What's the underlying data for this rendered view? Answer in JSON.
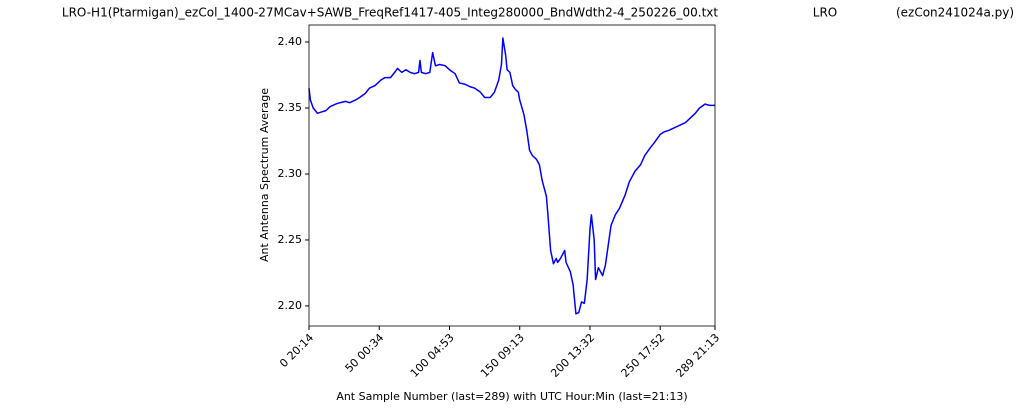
{
  "chart_data": {
    "type": "line",
    "title": "LRO-H1(Ptarmigan)_ezCol_1400-27MCav+SAWB_FreqRef1417-405_Integ280000_BndWdth2-4_250226_00.txt",
    "annotations": [
      "LRO",
      "(ezCon241024a.py)"
    ],
    "xlabel": "Ant Sample Number (last=289) with UTC Hour:Min (last=21:13)",
    "ylabel": "Ant Antenna Spectrum Average",
    "color": "#0000ff",
    "xlim": [
      0,
      289
    ],
    "ylim": [
      2.1848,
      2.4129
    ],
    "xticks": [
      {
        "value": 0,
        "label": "0  20:14"
      },
      {
        "value": 50,
        "label": "50  00:34"
      },
      {
        "value": 100,
        "label": "100  04:53"
      },
      {
        "value": 150,
        "label": "150  09:13"
      },
      {
        "value": 200,
        "label": "200  13:32"
      },
      {
        "value": 250,
        "label": "250  17:52"
      },
      {
        "value": 289,
        "label": "289  21:13"
      }
    ],
    "yticks": [
      {
        "value": 2.2,
        "label": "2.20"
      },
      2.25,
      {
        "value": 2.3,
        "label": "2.30"
      },
      2.35,
      {
        "value": 2.4,
        "label": "2.40"
      }
    ],
    "x": [
      0,
      1,
      3,
      6,
      9,
      12,
      15,
      19,
      22,
      26,
      29,
      33,
      36,
      40,
      43,
      47,
      51,
      54,
      58,
      61,
      63,
      66,
      69,
      72,
      75,
      78,
      79,
      80,
      83,
      86,
      88,
      90,
      93,
      97,
      100,
      104,
      107,
      111,
      115,
      118,
      122,
      125,
      129,
      132,
      135,
      137,
      138,
      140,
      141,
      143,
      145,
      147,
      149,
      150,
      153,
      155,
      157,
      159,
      162,
      164,
      166,
      169,
      170,
      172,
      174,
      176,
      177,
      179,
      182,
      183,
      186,
      188,
      190,
      192,
      194,
      196,
      198,
      200,
      201,
      203,
      204,
      206,
      209,
      211,
      213,
      215,
      218,
      221,
      225,
      228,
      232,
      236,
      239,
      243,
      246,
      250,
      253,
      256,
      260,
      264,
      268,
      271,
      275,
      278,
      282,
      285,
      289
    ],
    "values": [
      2.365,
      2.356,
      2.35,
      2.346,
      2.347,
      2.348,
      2.351,
      2.353,
      2.354,
      2.355,
      2.354,
      2.356,
      2.358,
      2.361,
      2.365,
      2.367,
      2.371,
      2.373,
      2.373,
      2.377,
      2.38,
      2.377,
      2.379,
      2.377,
      2.376,
      2.377,
      2.386,
      2.377,
      2.376,
      2.377,
      2.392,
      2.382,
      2.383,
      2.382,
      2.379,
      2.376,
      2.369,
      2.368,
      2.366,
      2.365,
      2.362,
      2.358,
      2.358,
      2.362,
      2.371,
      2.383,
      2.403,
      2.39,
      2.379,
      2.377,
      2.367,
      2.364,
      2.362,
      2.356,
      2.345,
      2.333,
      2.318,
      2.314,
      2.311,
      2.307,
      2.295,
      2.283,
      2.27,
      2.242,
      2.232,
      2.236,
      2.233,
      2.236,
      2.242,
      2.233,
      2.226,
      2.216,
      2.194,
      2.195,
      2.203,
      2.202,
      2.22,
      2.258,
      2.269,
      2.25,
      2.22,
      2.229,
      2.223,
      2.231,
      2.246,
      2.261,
      2.269,
      2.274,
      2.284,
      2.294,
      2.302,
      2.307,
      2.314,
      2.32,
      2.324,
      2.33,
      2.332,
      2.333,
      2.335,
      2.337,
      2.339,
      2.342,
      2.346,
      2.35,
      2.353,
      2.352,
      2.352
    ]
  }
}
